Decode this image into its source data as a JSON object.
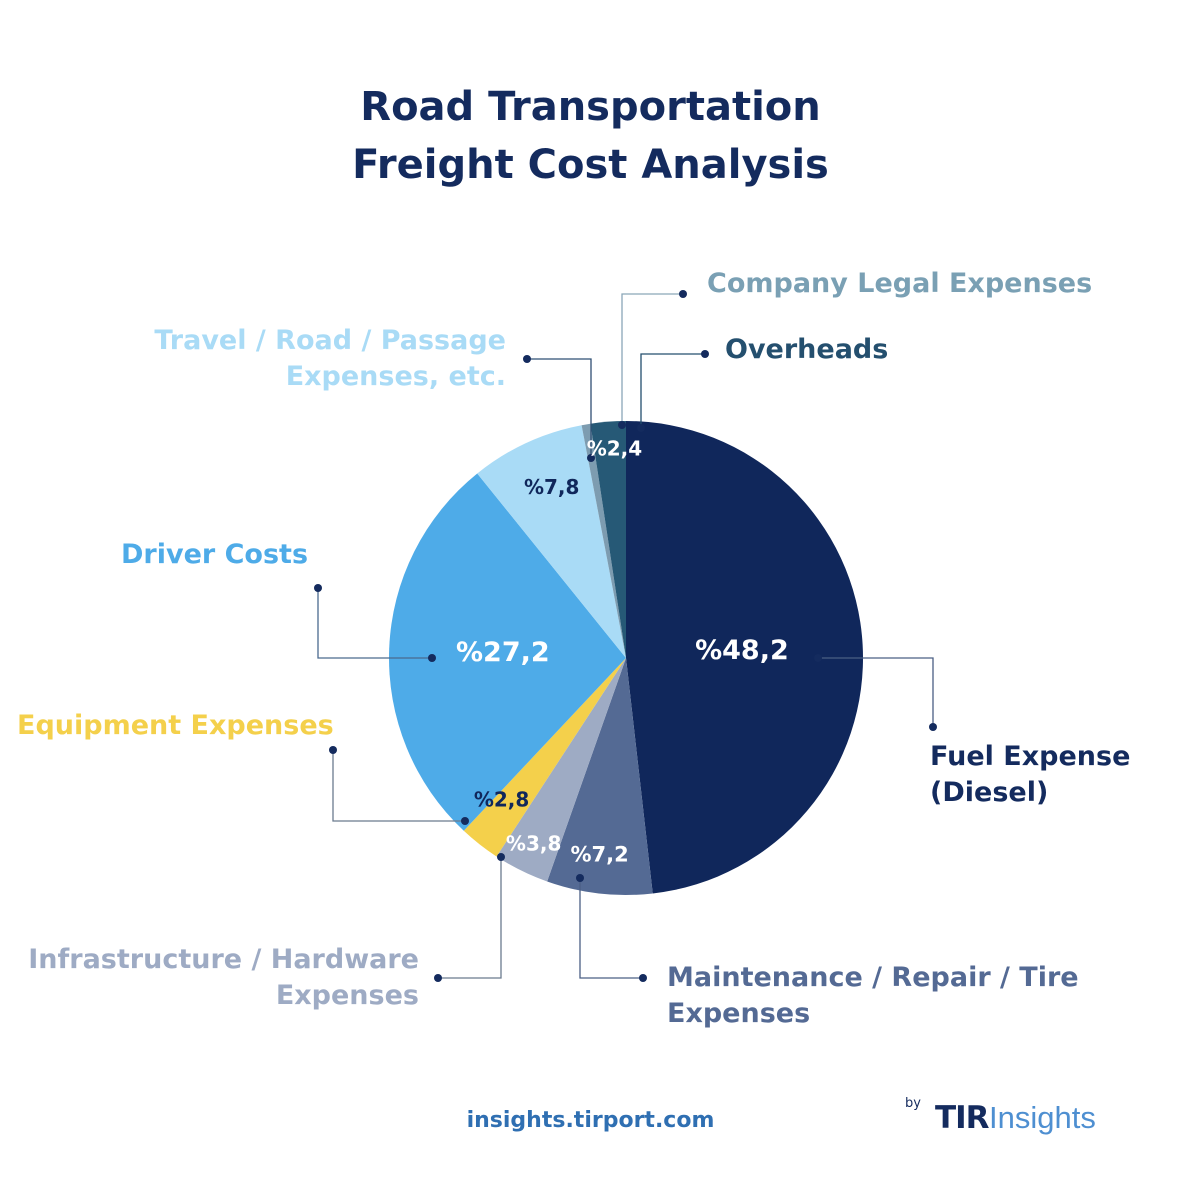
{
  "title": [
    "Road Transportation",
    "Freight Cost Analysis"
  ],
  "chart_data": {
    "type": "pie",
    "title": "Road Transportation Freight Cost Analysis",
    "slices": [
      {
        "name": "Fuel Expense (Diesel)",
        "value": 48.2,
        "label": "%48,2",
        "color": "#10275b",
        "text_color": "#ffffff"
      },
      {
        "name": "Maintenance / Repair / Tire Expenses",
        "value": 7.2,
        "label": "%7,2",
        "color": "#546a94",
        "text_color": "#ffffff"
      },
      {
        "name": "Infrastructure / Hardware Expenses",
        "value": 3.8,
        "label": "%3,8",
        "color": "#9eabc4",
        "text_color": "#ffffff"
      },
      {
        "name": "Equipment Expenses",
        "value": 2.8,
        "label": "%2,8",
        "color": "#f4d04b",
        "text_color": "#10275b"
      },
      {
        "name": "Driver Costs",
        "value": 27.2,
        "label": "%27,2",
        "color": "#4eabe8",
        "text_color": "#ffffff"
      },
      {
        "name": "Travel / Road / Passage Expenses, etc.",
        "value": 7.8,
        "label": "%7,8",
        "color": "#a9dbf6",
        "text_color": "#10275b"
      },
      {
        "name": "Company Legal Expenses",
        "value": 0.6,
        "label": "",
        "color": "#7d9cb0",
        "text_color": "#ffffff"
      },
      {
        "name": "Overheads",
        "value": 2.4,
        "label": "%2,4",
        "color": "#265976",
        "text_color": "#ffffff"
      }
    ]
  },
  "labels": {
    "legal": {
      "text": [
        "Company Legal Expenses"
      ],
      "color": "#7aa0b4"
    },
    "overheads": {
      "text": [
        "Overheads"
      ],
      "color": "#244f6e"
    },
    "travel": {
      "text": [
        "Travel / Road / Passage",
        "Expenses, etc."
      ],
      "color": "#a9dbf6"
    },
    "driver": {
      "text": [
        "Driver Costs"
      ],
      "color": "#4eabe8"
    },
    "equipment": {
      "text": [
        "Equipment Expenses"
      ],
      "color": "#f4d04b"
    },
    "infra": {
      "text": [
        "Infrastructure / Hardware",
        "Expenses"
      ],
      "color": "#9eabc4"
    },
    "maint": {
      "text": [
        "Maintenance / Repair / Tire",
        "Expenses"
      ],
      "color": "#546a94"
    },
    "fuel": {
      "text": [
        "Fuel Expense",
        "(Diesel)"
      ],
      "color": "#142b5e"
    }
  },
  "footer": {
    "url": "insights.tirport.com",
    "brand_by": "by",
    "brand_tir": "TIR",
    "brand_insights": "Insights"
  }
}
